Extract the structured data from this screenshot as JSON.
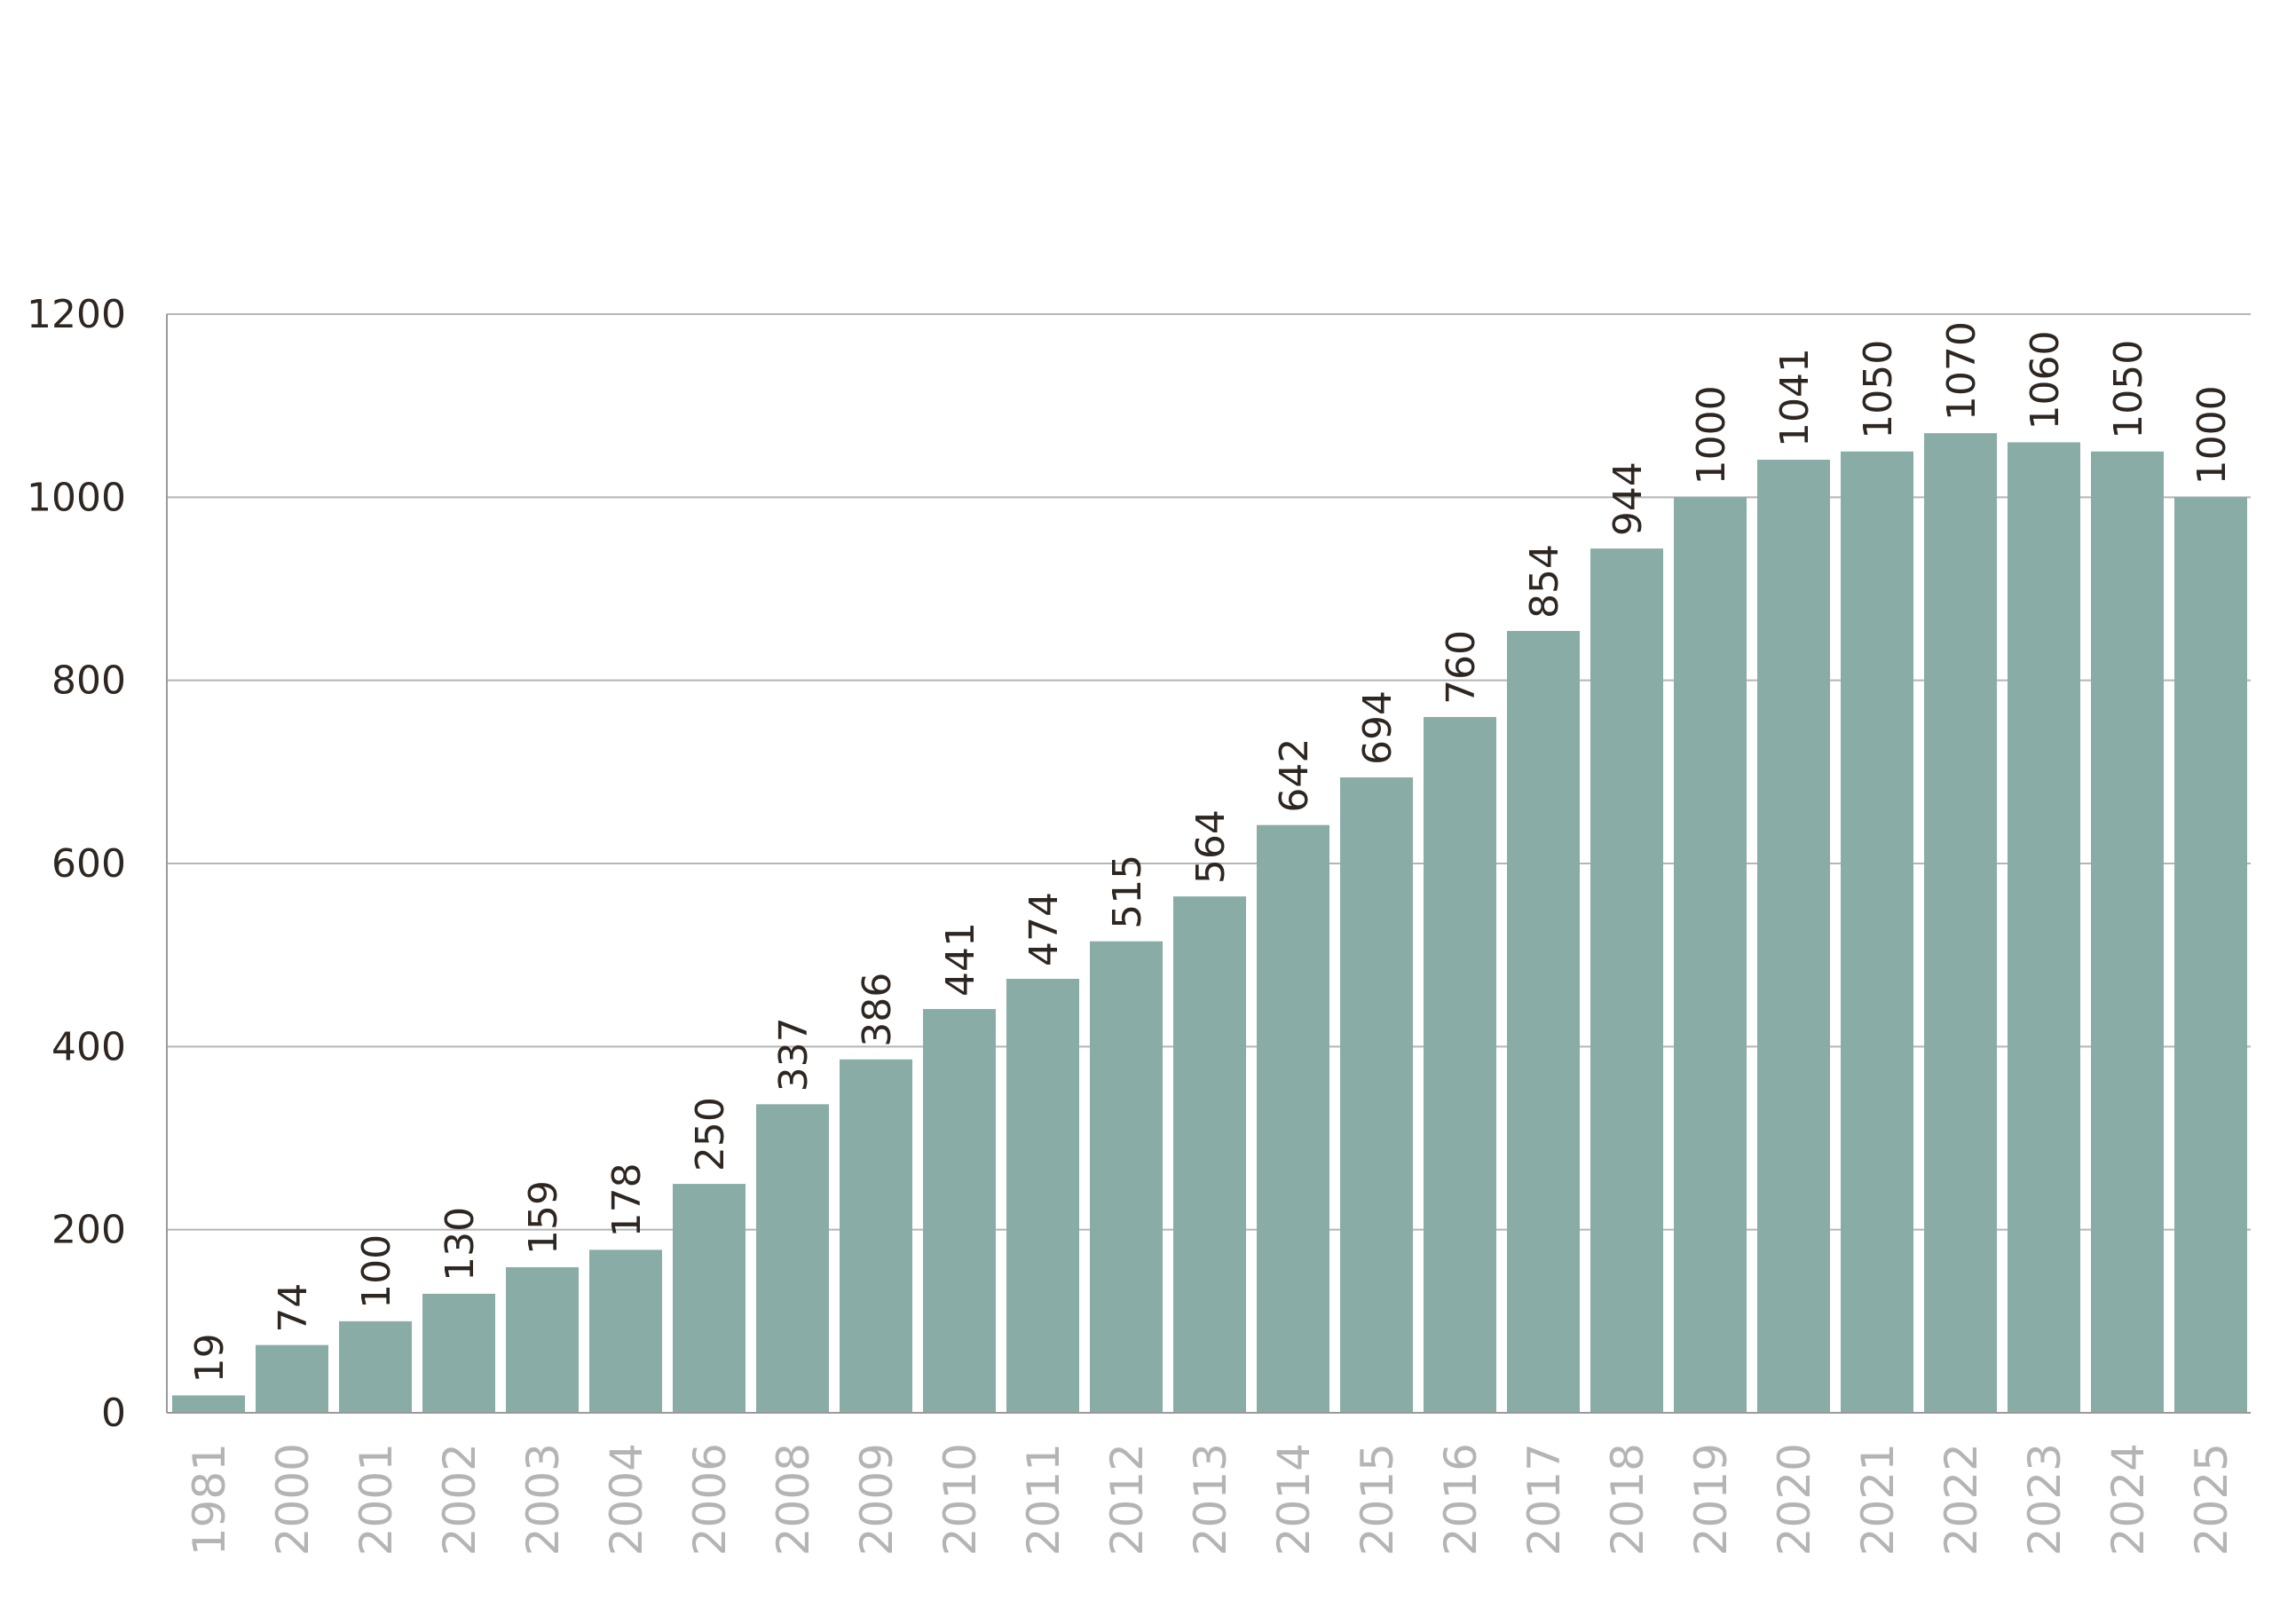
{
  "chart_data": {
    "type": "bar",
    "title": "",
    "xlabel": "",
    "ylabel": "",
    "ylim": [
      0,
      1200
    ],
    "yticks": [
      0,
      200,
      400,
      600,
      800,
      1000,
      1200
    ],
    "grid": true,
    "legend": "none",
    "bar_color": "#89aca7",
    "categories": [
      "1981",
      "2000",
      "2001",
      "2002",
      "2003",
      "2004",
      "2006",
      "2008",
      "2009",
      "2010",
      "2011",
      "2012",
      "2013",
      "2014",
      "2015",
      "2016",
      "2017",
      "2018",
      "2019",
      "2020",
      "2021",
      "2022",
      "2023",
      "2024",
      "2025"
    ],
    "values": [
      19,
      74,
      100,
      130,
      159,
      178,
      250,
      337,
      386,
      441,
      474,
      515,
      564,
      642,
      694,
      760,
      854,
      944,
      1000,
      1041,
      1050,
      1070,
      1060,
      1050,
      1000
    ]
  }
}
